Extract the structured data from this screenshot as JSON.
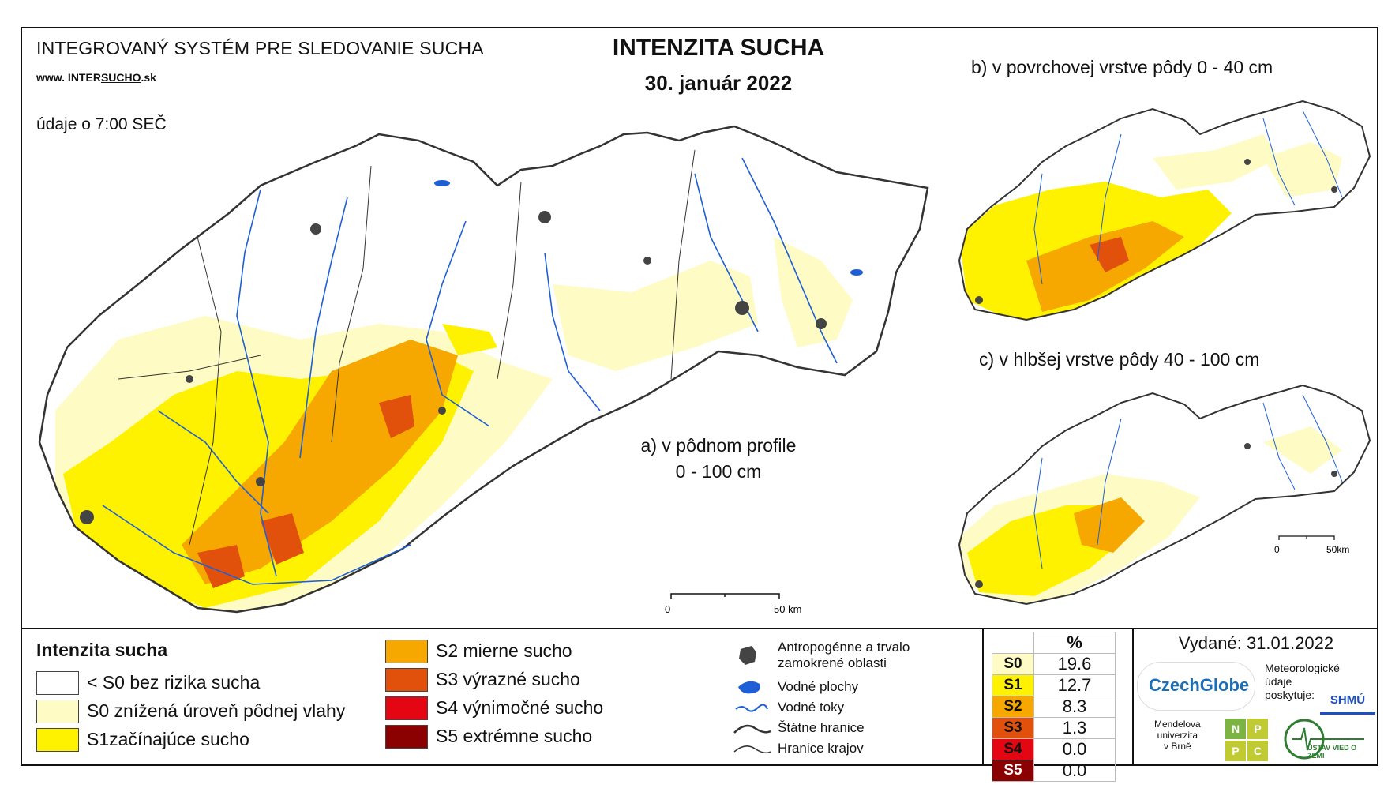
{
  "header": {
    "system_title": "INTEGROVANÝ SYSTÉM PRE SLEDOVANIE SUCHA",
    "url_prefix": "www. INTER",
    "url_mid": "SUCHO",
    "url_suffix": ".sk",
    "data_time": "údaje o 7:00 SEČ",
    "title": "INTENZITA SUCHA",
    "date": "30. január 2022"
  },
  "maps": {
    "a_label_line1": "a) v pôdnom profile",
    "a_label_line2": "0 - 100 cm",
    "b_label": "b) v povrchovej vrstve pôdy 0 - 40 cm",
    "c_label": "c) v hlbšej vrstve pôdy 40 - 100 cm",
    "scale_main": {
      "zero": "0",
      "end": "50 km"
    },
    "scale_small": {
      "zero": "0",
      "end": "50km"
    }
  },
  "legend": {
    "title": "Intenzita sucha",
    "classes": [
      {
        "label": "< S0 bez rizika sucha",
        "color": "#ffffff"
      },
      {
        "label": "S0 znížená úroveň pôdnej vlahy",
        "color": "#fefcc4"
      },
      {
        "label": "S1začínajúce sucho",
        "color": "#fef200"
      },
      {
        "label": "S2 mierne sucho",
        "color": "#f6a800"
      },
      {
        "label": "S3 výrazné sucho",
        "color": "#e2510b"
      },
      {
        "label": "S4 výnimočné sucho",
        "color": "#e40613"
      },
      {
        "label": "S5 extrémne sucho",
        "color": "#8b0000"
      }
    ]
  },
  "map_legend": {
    "anthropogenic_line1": "Antropogénne a trvalo",
    "anthropogenic_line2": "zamokrené oblasti",
    "water_bodies": "Vodné plochy",
    "water_streams": "Vodné toky",
    "state_border": "Štátne hranice",
    "region_border": "Hranice krajov"
  },
  "percent_table": {
    "header": "%",
    "rows": [
      {
        "key": "S0",
        "value": "19.6",
        "color": "#fefcc4"
      },
      {
        "key": "S1",
        "value": "12.7",
        "color": "#fef200"
      },
      {
        "key": "S2",
        "value": "8.3",
        "color": "#f6a800"
      },
      {
        "key": "S3",
        "value": "1.3",
        "color": "#e2510b"
      },
      {
        "key": "S4",
        "value": "0.0",
        "color": "#e40613"
      },
      {
        "key": "S5",
        "value": "0.0",
        "color": "#8b0000"
      }
    ]
  },
  "issued": "Vydané: 31.01.2022",
  "logos": {
    "czechglobe": "CzechGlobe",
    "meteo_line1": "Meteorologické",
    "meteo_line2": "údaje",
    "meteo_line3": "poskytuje:",
    "shmu": "SHMÚ",
    "mendel_line1": "Mendelova",
    "mendel_line2": "univerzita",
    "mendel_line3": "v Brně",
    "npp": [
      "N",
      "P",
      "P",
      "C"
    ],
    "ustav": "ÚSTAV VIED O ZEMI"
  },
  "colors": {
    "water": "#1f5fd6",
    "urban": "#444444",
    "border": "#333333"
  }
}
